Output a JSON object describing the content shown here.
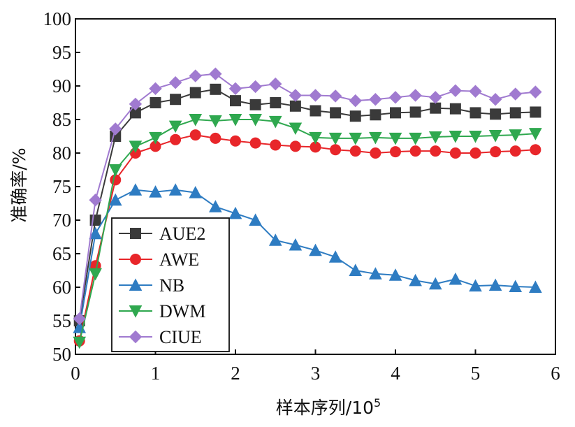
{
  "chart_data": {
    "type": "line",
    "xlabel": "样本序列/10",
    "xlabel_exp": "5",
    "ylabel": "准确率/%",
    "xlim": [
      0,
      6
    ],
    "ylim": [
      50,
      100
    ],
    "xticks": [
      0,
      1,
      2,
      3,
      4,
      5,
      6
    ],
    "yticks": [
      50,
      55,
      60,
      65,
      70,
      75,
      80,
      85,
      90,
      95,
      100
    ],
    "grid": false,
    "legend": "left",
    "x": [
      0.05,
      0.25,
      0.5,
      0.75,
      1.0,
      1.25,
      1.5,
      1.75,
      2.0,
      2.25,
      2.5,
      2.75,
      3.0,
      3.25,
      3.5,
      3.75,
      4.0,
      4.25,
      4.5,
      4.75,
      5.0,
      5.25,
      5.5,
      5.75
    ],
    "series": [
      {
        "name": "AUE2",
        "color": "#3a3a3a",
        "marker": "square",
        "values": [
          55,
          70,
          82.5,
          86,
          87.5,
          88,
          89,
          89.5,
          87.8,
          87.2,
          87.5,
          87,
          86.3,
          86,
          85.5,
          85.7,
          86,
          86.1,
          86.7,
          86.6,
          86,
          85.8,
          86,
          86.1
        ]
      },
      {
        "name": "AWE",
        "color": "#e8262a",
        "marker": "circle",
        "values": [
          52,
          63.2,
          76,
          80,
          81,
          82,
          82.7,
          82.2,
          81.8,
          81.5,
          81.2,
          81,
          80.9,
          80.5,
          80.3,
          80,
          80.2,
          80.3,
          80.3,
          80,
          80,
          80.2,
          80.3,
          80.5
        ]
      },
      {
        "name": "NB",
        "color": "#2e7cc2",
        "marker": "triangle-up",
        "values": [
          54,
          68,
          73,
          74.5,
          74.2,
          74.5,
          74.1,
          72,
          71,
          70,
          67,
          66.3,
          65.5,
          64.5,
          62.5,
          62,
          61.8,
          61,
          60.5,
          61.2,
          60.2,
          60.3,
          60.1,
          60
        ]
      },
      {
        "name": "DWM",
        "color": "#2fa84f",
        "marker": "triangle-down",
        "values": [
          51.8,
          62,
          77.5,
          81,
          82.3,
          84,
          85,
          84.8,
          85,
          85,
          84.7,
          83.7,
          82.3,
          82.2,
          82.2,
          82.3,
          82.2,
          82.2,
          82.4,
          82.5,
          82.5,
          82.6,
          82.7,
          82.9
        ]
      },
      {
        "name": "CIUE",
        "color": "#a07ad0",
        "marker": "diamond",
        "values": [
          55.3,
          73,
          83.6,
          87.3,
          89.6,
          90.5,
          91.5,
          91.8,
          89.6,
          89.9,
          90.3,
          88.6,
          88.6,
          88.5,
          87.8,
          88,
          88.3,
          88.6,
          88.3,
          89.3,
          89.2,
          88,
          88.8,
          89.1
        ]
      }
    ]
  }
}
